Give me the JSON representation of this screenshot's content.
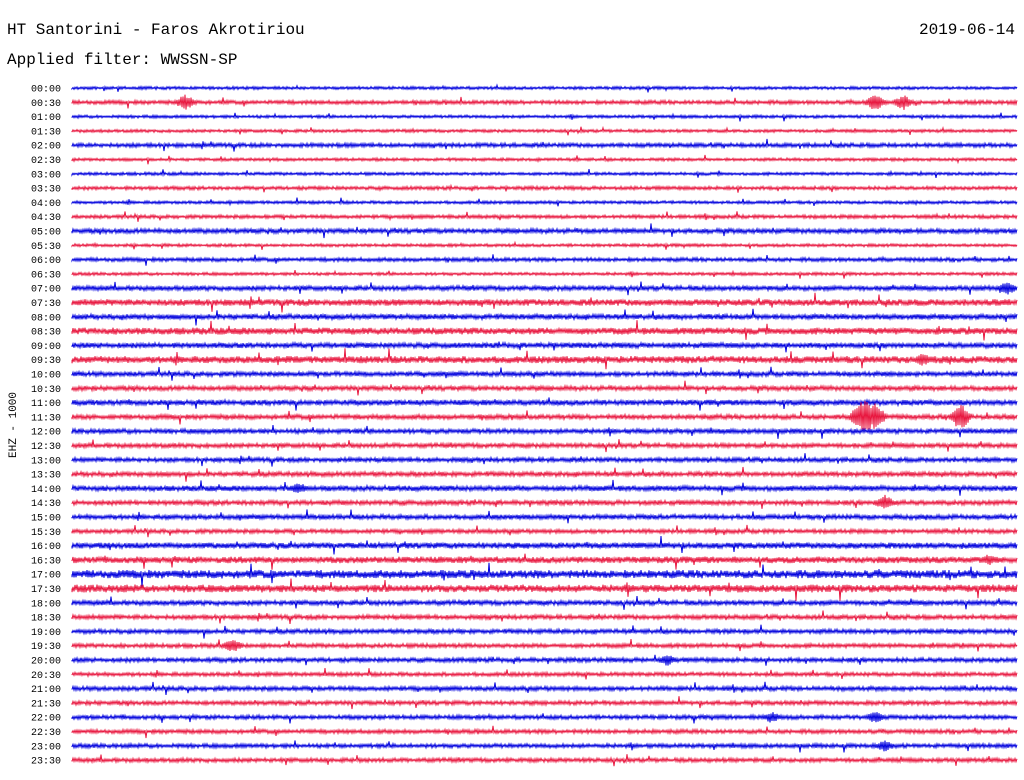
{
  "header": {
    "title": "HT Santorini - Faros Akrotiriou",
    "date": "2019-06-14",
    "filter": "Applied filter: WWSSN-SP"
  },
  "chart_data": {
    "type": "line",
    "title": "HT Santorini - Faros Akrotiriou",
    "date": "2019-06-14",
    "filter": "WWSSN-SP",
    "ylabel": "EHZ - 1000",
    "row_labels": [
      "00:00",
      "00:30",
      "01:00",
      "01:30",
      "02:00",
      "02:30",
      "03:00",
      "03:30",
      "04:00",
      "04:30",
      "05:00",
      "05:30",
      "06:00",
      "06:30",
      "07:00",
      "07:30",
      "08:00",
      "08:30",
      "09:00",
      "09:30",
      "10:00",
      "10:30",
      "11:00",
      "11:30",
      "12:00",
      "12:30",
      "13:00",
      "13:30",
      "14:00",
      "14:30",
      "15:00",
      "15:30",
      "16:00",
      "16:30",
      "17:00",
      "17:30",
      "18:00",
      "18:30",
      "19:00",
      "19:30",
      "20:00",
      "20:30",
      "21:00",
      "21:30",
      "22:00",
      "22:30",
      "23:00",
      "23:30"
    ],
    "row_colors": [
      "#0000dd",
      "#e8173f"
    ],
    "noise_level": [
      1.0,
      1.3,
      1.0,
      1.0,
      1.4,
      1.0,
      1.0,
      1.2,
      1.0,
      1.2,
      1.6,
      1.0,
      1.3,
      1.0,
      1.6,
      2.2,
      1.8,
      2.3,
      1.8,
      2.4,
      1.6,
      1.6,
      1.8,
      1.6,
      1.6,
      1.5,
      1.5,
      1.6,
      1.8,
      1.6,
      1.6,
      1.4,
      2.0,
      2.2,
      2.8,
      2.6,
      1.6,
      1.5,
      1.5,
      1.4,
      1.5,
      1.3,
      1.5,
      1.4,
      1.4,
      1.4,
      1.4,
      1.4
    ],
    "events": [
      {
        "row": 1,
        "at": 0.12,
        "amp": 8
      },
      {
        "row": 1,
        "at": 0.85,
        "amp": 9
      },
      {
        "row": 1,
        "at": 0.88,
        "amp": 8
      },
      {
        "row": 23,
        "at": 0.835,
        "amp": 16
      },
      {
        "row": 23,
        "at": 0.84,
        "amp": 18
      },
      {
        "row": 23,
        "at": 0.85,
        "amp": 14
      },
      {
        "row": 23,
        "at": 0.94,
        "amp": 14
      },
      {
        "row": 19,
        "at": 0.9,
        "amp": 7
      },
      {
        "row": 29,
        "at": 0.86,
        "amp": 8
      },
      {
        "row": 28,
        "at": 0.24,
        "amp": 6
      },
      {
        "row": 39,
        "at": 0.17,
        "amp": 7
      },
      {
        "row": 40,
        "at": 0.63,
        "amp": 6
      },
      {
        "row": 44,
        "at": 0.74,
        "amp": 6
      },
      {
        "row": 44,
        "at": 0.85,
        "amp": 6
      },
      {
        "row": 46,
        "at": 0.86,
        "amp": 6
      },
      {
        "row": 14,
        "at": 0.99,
        "amp": 7
      },
      {
        "row": 33,
        "at": 0.97,
        "amp": 6
      }
    ]
  }
}
